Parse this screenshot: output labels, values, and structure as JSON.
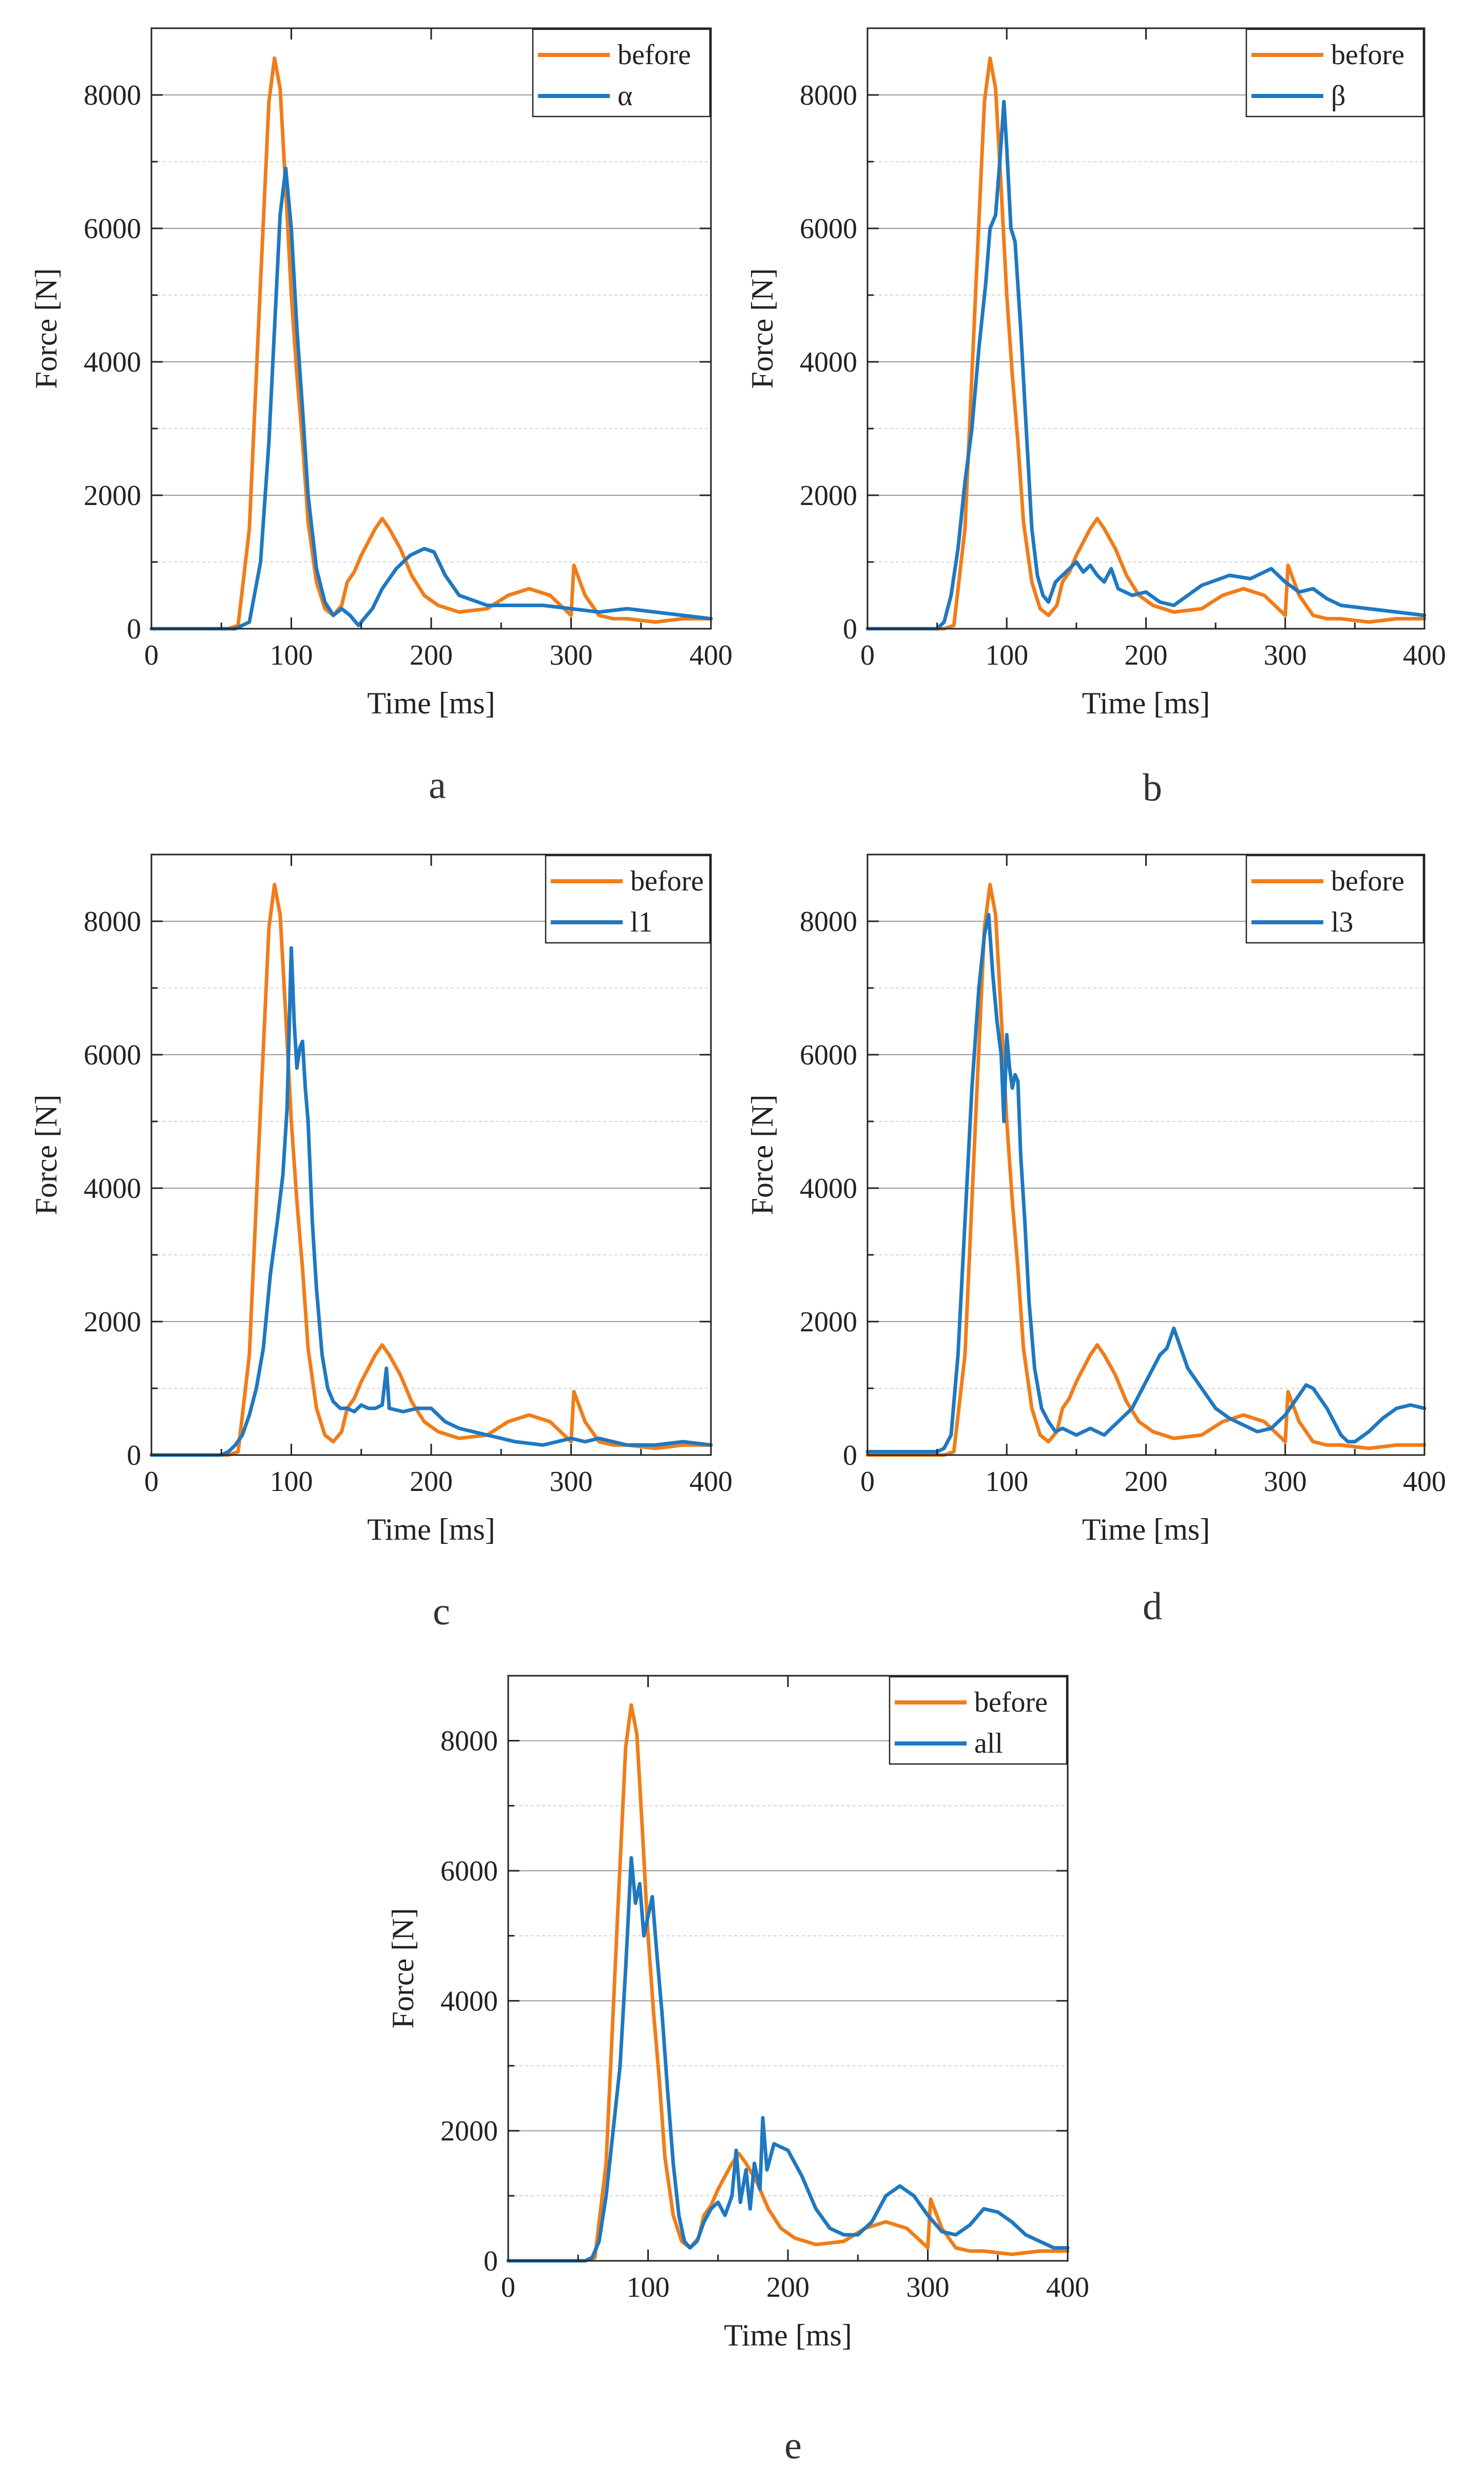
{
  "colors": {
    "before": "#f07d1a",
    "other": "#1f78c1"
  },
  "chart_data": [
    {
      "type": "line",
      "panel": "a",
      "xlabel": "Time [ms]",
      "ylabel": "Force [N]",
      "xlim": [
        0,
        400
      ],
      "ylim": [
        0,
        9000
      ],
      "xticks": [
        0,
        100,
        200,
        300,
        400
      ],
      "yticks": [
        0,
        2000,
        4000,
        6000,
        8000
      ],
      "grid": true,
      "legend": "top-right",
      "series": [
        {
          "name": "before",
          "color": "#f07d1a",
          "x": [
            0,
            55,
            62,
            70,
            78,
            84,
            88,
            92,
            96,
            100,
            104,
            108,
            112,
            118,
            124,
            130,
            136,
            140,
            145,
            150,
            155,
            160,
            165,
            170,
            178,
            186,
            195,
            205,
            220,
            240,
            255,
            270,
            285,
            295,
            300,
            302,
            310,
            320,
            330,
            340,
            360,
            380,
            400
          ],
          "y": [
            0,
            0,
            50,
            1500,
            5200,
            7900,
            8550,
            8100,
            6600,
            5000,
            3800,
            2800,
            1600,
            700,
            300,
            200,
            350,
            700,
            850,
            1100,
            1300,
            1500,
            1650,
            1500,
            1200,
            800,
            500,
            350,
            250,
            300,
            500,
            600,
            500,
            300,
            200,
            950,
            500,
            200,
            150,
            150,
            100,
            150,
            150
          ]
        },
        {
          "name": "α",
          "color": "#1f78c1",
          "x": [
            0,
            60,
            70,
            78,
            84,
            88,
            92,
            96,
            100,
            104,
            108,
            112,
            118,
            124,
            130,
            136,
            142,
            148,
            152,
            158,
            165,
            175,
            185,
            195,
            202,
            210,
            220,
            240,
            260,
            280,
            300,
            320,
            340,
            360,
            380,
            400
          ],
          "y": [
            0,
            0,
            100,
            1000,
            2800,
            4500,
            6200,
            6900,
            6000,
            4500,
            3300,
            2000,
            900,
            400,
            200,
            300,
            200,
            50,
            150,
            300,
            600,
            900,
            1100,
            1200,
            1150,
            800,
            500,
            350,
            350,
            350,
            300,
            250,
            300,
            250,
            200,
            150
          ]
        }
      ]
    },
    {
      "type": "line",
      "panel": "b",
      "xlabel": "Time [ms]",
      "ylabel": "Force [N]",
      "xlim": [
        0,
        400
      ],
      "ylim": [
        0,
        9000
      ],
      "xticks": [
        0,
        100,
        200,
        300,
        400
      ],
      "yticks": [
        0,
        2000,
        4000,
        6000,
        8000
      ],
      "grid": true,
      "legend": "top-right",
      "series": [
        {
          "name": "before",
          "color": "#f07d1a",
          "x": [
            0,
            55,
            62,
            70,
            78,
            84,
            88,
            92,
            96,
            100,
            104,
            108,
            112,
            118,
            124,
            130,
            136,
            140,
            145,
            150,
            155,
            160,
            165,
            170,
            178,
            186,
            195,
            205,
            220,
            240,
            255,
            270,
            285,
            295,
            300,
            302,
            310,
            320,
            330,
            340,
            360,
            380,
            400
          ],
          "y": [
            0,
            0,
            50,
            1500,
            5200,
            7900,
            8550,
            8100,
            6600,
            5000,
            3800,
            2800,
            1600,
            700,
            300,
            200,
            350,
            700,
            850,
            1100,
            1300,
            1500,
            1650,
            1500,
            1200,
            800,
            500,
            350,
            250,
            300,
            500,
            600,
            500,
            300,
            200,
            950,
            500,
            200,
            150,
            150,
            100,
            150,
            150
          ]
        },
        {
          "name": "β",
          "color": "#1f78c1",
          "x": [
            0,
            50,
            55,
            60,
            65,
            70,
            75,
            80,
            85,
            88,
            92,
            95,
            98,
            100,
            103,
            106,
            110,
            114,
            118,
            122,
            126,
            130,
            135,
            140,
            145,
            150,
            155,
            160,
            165,
            170,
            175,
            180,
            190,
            200,
            210,
            220,
            240,
            260,
            275,
            290,
            300,
            310,
            320,
            330,
            340,
            360,
            380,
            400
          ],
          "y": [
            0,
            0,
            100,
            500,
            1200,
            2200,
            3000,
            4200,
            5200,
            6000,
            6200,
            7000,
            7900,
            7200,
            6000,
            5800,
            4500,
            3000,
            1500,
            800,
            500,
            400,
            700,
            800,
            900,
            1000,
            850,
            950,
            800,
            700,
            900,
            600,
            500,
            550,
            400,
            350,
            650,
            800,
            750,
            900,
            700,
            550,
            600,
            450,
            350,
            300,
            250,
            200
          ]
        }
      ]
    },
    {
      "type": "line",
      "panel": "c",
      "xlabel": "Time [ms]",
      "ylabel": "Force [N]",
      "xlim": [
        0,
        400
      ],
      "ylim": [
        0,
        9000
      ],
      "xticks": [
        0,
        100,
        200,
        300,
        400
      ],
      "yticks": [
        0,
        2000,
        4000,
        6000,
        8000
      ],
      "grid": true,
      "legend": "top-right",
      "series": [
        {
          "name": "before",
          "color": "#f07d1a",
          "x": [
            0,
            55,
            62,
            70,
            78,
            84,
            88,
            92,
            96,
            100,
            104,
            108,
            112,
            118,
            124,
            130,
            136,
            140,
            145,
            150,
            155,
            160,
            165,
            170,
            178,
            186,
            195,
            205,
            220,
            240,
            255,
            270,
            285,
            295,
            300,
            302,
            310,
            320,
            330,
            340,
            360,
            380,
            400
          ],
          "y": [
            0,
            0,
            50,
            1500,
            5200,
            7900,
            8550,
            8100,
            6600,
            5000,
            3800,
            2800,
            1600,
            700,
            300,
            200,
            350,
            700,
            850,
            1100,
            1300,
            1500,
            1650,
            1500,
            1200,
            800,
            500,
            350,
            250,
            300,
            500,
            600,
            500,
            300,
            200,
            950,
            500,
            200,
            150,
            150,
            100,
            150,
            150
          ]
        },
        {
          "name": "l1",
          "color": "#1f78c1",
          "x": [
            0,
            50,
            55,
            60,
            65,
            70,
            75,
            80,
            85,
            90,
            94,
            97,
            100,
            102,
            104,
            106,
            108,
            110,
            112,
            115,
            118,
            122,
            126,
            130,
            135,
            140,
            145,
            150,
            155,
            160,
            165,
            168,
            170,
            180,
            190,
            200,
            205,
            210,
            220,
            240,
            260,
            280,
            300,
            310,
            320,
            340,
            360,
            380,
            400
          ],
          "y": [
            0,
            0,
            50,
            150,
            300,
            600,
            1000,
            1600,
            2700,
            3500,
            4200,
            5200,
            7600,
            6500,
            5800,
            6100,
            6200,
            5500,
            5000,
            3500,
            2500,
            1500,
            1000,
            800,
            700,
            700,
            650,
            750,
            700,
            700,
            750,
            1300,
            700,
            650,
            700,
            700,
            600,
            500,
            400,
            300,
            200,
            150,
            250,
            200,
            250,
            150,
            150,
            200,
            150
          ]
        }
      ]
    },
    {
      "type": "line",
      "panel": "d",
      "xlabel": "Time [ms]",
      "ylabel": "Force [N]",
      "xlim": [
        0,
        400
      ],
      "ylim": [
        0,
        9000
      ],
      "xticks": [
        0,
        100,
        200,
        300,
        400
      ],
      "yticks": [
        0,
        2000,
        4000,
        6000,
        8000
      ],
      "grid": true,
      "legend": "top-right",
      "series": [
        {
          "name": "before",
          "color": "#f07d1a",
          "x": [
            0,
            55,
            62,
            70,
            78,
            84,
            88,
            92,
            96,
            100,
            104,
            108,
            112,
            118,
            124,
            130,
            136,
            140,
            145,
            150,
            155,
            160,
            165,
            170,
            178,
            186,
            195,
            205,
            220,
            240,
            255,
            270,
            285,
            295,
            300,
            302,
            310,
            320,
            330,
            340,
            360,
            380,
            400
          ],
          "y": [
            0,
            0,
            50,
            1500,
            5200,
            7900,
            8550,
            8100,
            6600,
            5000,
            3800,
            2800,
            1600,
            700,
            300,
            200,
            350,
            700,
            850,
            1100,
            1300,
            1500,
            1650,
            1500,
            1200,
            800,
            500,
            350,
            250,
            300,
            500,
            600,
            500,
            300,
            200,
            950,
            500,
            200,
            150,
            150,
            100,
            150,
            150
          ]
        },
        {
          "name": "l3",
          "color": "#1f78c1",
          "x": [
            0,
            50,
            55,
            60,
            65,
            70,
            75,
            80,
            84,
            87,
            90,
            93,
            96,
            98,
            100,
            102,
            104,
            106,
            108,
            110,
            113,
            116,
            120,
            125,
            130,
            135,
            140,
            150,
            160,
            170,
            180,
            190,
            200,
            205,
            210,
            215,
            220,
            225,
            230,
            240,
            250,
            260,
            270,
            280,
            290,
            300,
            310,
            315,
            320,
            330,
            340,
            345,
            350,
            360,
            370,
            380,
            390,
            400
          ],
          "y": [
            50,
            50,
            100,
            300,
            1500,
            3500,
            5500,
            7000,
            7800,
            8100,
            7200,
            6500,
            6000,
            5000,
            6300,
            5800,
            5500,
            5700,
            5600,
            4500,
            3500,
            2300,
            1300,
            700,
            500,
            350,
            400,
            300,
            400,
            300,
            500,
            700,
            1100,
            1300,
            1500,
            1600,
            1900,
            1600,
            1300,
            1000,
            700,
            550,
            450,
            350,
            400,
            600,
            900,
            1050,
            1000,
            700,
            300,
            200,
            200,
            350,
            550,
            700,
            750,
            700
          ]
        }
      ]
    },
    {
      "type": "line",
      "panel": "e",
      "xlabel": "Time [ms]",
      "ylabel": "Force [N]",
      "xlim": [
        0,
        400
      ],
      "ylim": [
        0,
        9000
      ],
      "xticks": [
        0,
        100,
        200,
        300,
        400
      ],
      "yticks": [
        0,
        2000,
        4000,
        6000,
        8000
      ],
      "grid": true,
      "legend": "top-right",
      "series": [
        {
          "name": "before",
          "color": "#f07d1a",
          "x": [
            0,
            55,
            62,
            70,
            78,
            84,
            88,
            92,
            96,
            100,
            104,
            108,
            112,
            118,
            124,
            130,
            136,
            140,
            145,
            150,
            155,
            160,
            165,
            170,
            178,
            186,
            195,
            205,
            220,
            240,
            255,
            270,
            285,
            295,
            300,
            302,
            310,
            320,
            330,
            340,
            360,
            380,
            400
          ],
          "y": [
            0,
            0,
            50,
            1500,
            5200,
            7900,
            8550,
            8100,
            6600,
            5000,
            3800,
            2800,
            1600,
            700,
            300,
            200,
            350,
            700,
            850,
            1100,
            1300,
            1500,
            1650,
            1500,
            1200,
            800,
            500,
            350,
            250,
            300,
            500,
            600,
            500,
            300,
            200,
            950,
            500,
            200,
            150,
            150,
            100,
            150,
            150
          ]
        },
        {
          "name": "all",
          "color": "#1f78c1",
          "x": [
            0,
            55,
            60,
            65,
            70,
            75,
            80,
            84,
            88,
            91,
            94,
            97,
            100,
            103,
            106,
            110,
            114,
            118,
            122,
            126,
            130,
            135,
            140,
            145,
            150,
            155,
            160,
            163,
            166,
            170,
            173,
            176,
            180,
            182,
            185,
            190,
            195,
            200,
            210,
            220,
            230,
            240,
            250,
            260,
            270,
            280,
            290,
            300,
            310,
            320,
            330,
            340,
            350,
            360,
            370,
            380,
            390,
            400
          ],
          "y": [
            0,
            0,
            50,
            300,
            1000,
            2000,
            3000,
            4500,
            6200,
            5500,
            5800,
            5000,
            5300,
            5600,
            4800,
            3800,
            2600,
            1500,
            700,
            300,
            200,
            300,
            600,
            800,
            900,
            700,
            1000,
            1700,
            900,
            1400,
            800,
            1500,
            1100,
            2200,
            1400,
            1800,
            1750,
            1700,
            1300,
            800,
            500,
            400,
            400,
            600,
            1000,
            1150,
            1000,
            700,
            450,
            400,
            550,
            800,
            750,
            600,
            400,
            300,
            200,
            200
          ]
        }
      ]
    }
  ],
  "labels": {
    "a": "a",
    "b": "b",
    "c": "c",
    "d": "d",
    "e": "e"
  }
}
